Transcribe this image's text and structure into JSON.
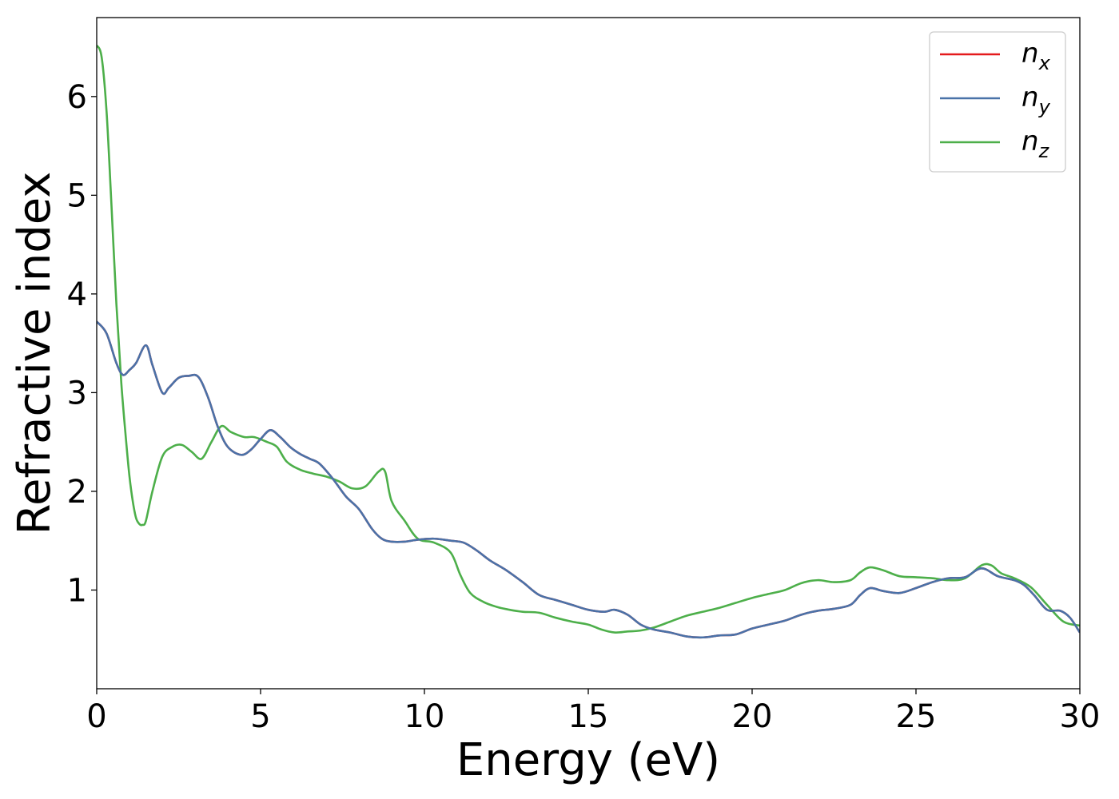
{
  "chart_data": {
    "type": "line",
    "xlabel": "Energy (eV)",
    "ylabel": "Refractive index",
    "xlim": [
      0,
      30
    ],
    "ylim": [
      0,
      6.8
    ],
    "xticks": [
      0,
      5,
      10,
      15,
      20,
      25,
      30
    ],
    "xtick_labels": [
      "0",
      "5",
      "10",
      "15",
      "20",
      "25",
      "30"
    ],
    "yticks": [
      1,
      2,
      3,
      4,
      5,
      6
    ],
    "ytick_labels": [
      "1",
      "2",
      "3",
      "4",
      "5",
      "6"
    ],
    "grid": false,
    "legend_position": "top-right",
    "series": [
      {
        "name": "n",
        "subscript": "x",
        "color": "#e41a1c",
        "key": "xy",
        "x": [
          0,
          0.3,
          0.6,
          0.8,
          1.0,
          1.2,
          1.5,
          1.7,
          2.0,
          2.2,
          2.5,
          2.8,
          3.1,
          3.4,
          3.7,
          4.0,
          4.4,
          4.7,
          5.0,
          5.3,
          5.6,
          5.9,
          6.2,
          6.5,
          6.8,
          7.2,
          7.6,
          8.0,
          8.4,
          8.7,
          9.0,
          9.4,
          9.8,
          10.3,
          10.8,
          11.2,
          11.6,
          12.0,
          12.5,
          13.0,
          13.5,
          14.0,
          14.5,
          15.0,
          15.5,
          15.8,
          16.2,
          16.6,
          17.0,
          17.5,
          18.0,
          18.5,
          19.0,
          19.5,
          20.0,
          20.5,
          21.0,
          21.5,
          22.0,
          22.5,
          23.0,
          23.3,
          23.6,
          24.0,
          24.5,
          25.0,
          25.5,
          26.0,
          26.5,
          27.0,
          27.5,
          28.0,
          28.3,
          28.6,
          29.0,
          29.4,
          29.7,
          30.0
        ],
        "y": [
          3.72,
          3.6,
          3.3,
          3.18,
          3.23,
          3.3,
          3.48,
          3.28,
          3.0,
          3.05,
          3.15,
          3.17,
          3.16,
          2.95,
          2.65,
          2.45,
          2.37,
          2.42,
          2.53,
          2.62,
          2.55,
          2.45,
          2.38,
          2.33,
          2.28,
          2.13,
          1.95,
          1.82,
          1.62,
          1.52,
          1.49,
          1.49,
          1.51,
          1.52,
          1.5,
          1.48,
          1.4,
          1.3,
          1.2,
          1.08,
          0.95,
          0.9,
          0.85,
          0.8,
          0.78,
          0.8,
          0.75,
          0.65,
          0.6,
          0.57,
          0.53,
          0.52,
          0.54,
          0.55,
          0.61,
          0.65,
          0.69,
          0.75,
          0.79,
          0.81,
          0.85,
          0.95,
          1.02,
          0.99,
          0.97,
          1.02,
          1.08,
          1.12,
          1.13,
          1.22,
          1.14,
          1.1,
          1.05,
          0.95,
          0.8,
          0.79,
          0.72,
          0.57
        ]
      },
      {
        "name": "n",
        "subscript": "y",
        "color": "#4a72a8",
        "key": "xy",
        "x": [
          0,
          0.3,
          0.6,
          0.8,
          1.0,
          1.2,
          1.5,
          1.7,
          2.0,
          2.2,
          2.5,
          2.8,
          3.1,
          3.4,
          3.7,
          4.0,
          4.4,
          4.7,
          5.0,
          5.3,
          5.6,
          5.9,
          6.2,
          6.5,
          6.8,
          7.2,
          7.6,
          8.0,
          8.4,
          8.7,
          9.0,
          9.4,
          9.8,
          10.3,
          10.8,
          11.2,
          11.6,
          12.0,
          12.5,
          13.0,
          13.5,
          14.0,
          14.5,
          15.0,
          15.5,
          15.8,
          16.2,
          16.6,
          17.0,
          17.5,
          18.0,
          18.5,
          19.0,
          19.5,
          20.0,
          20.5,
          21.0,
          21.5,
          22.0,
          22.5,
          23.0,
          23.3,
          23.6,
          24.0,
          24.5,
          25.0,
          25.5,
          26.0,
          26.5,
          27.0,
          27.5,
          28.0,
          28.3,
          28.6,
          29.0,
          29.4,
          29.7,
          30.0
        ],
        "y": [
          3.72,
          3.6,
          3.3,
          3.18,
          3.23,
          3.3,
          3.48,
          3.28,
          3.0,
          3.05,
          3.15,
          3.17,
          3.16,
          2.95,
          2.65,
          2.45,
          2.37,
          2.42,
          2.53,
          2.62,
          2.55,
          2.45,
          2.38,
          2.33,
          2.28,
          2.13,
          1.95,
          1.82,
          1.62,
          1.52,
          1.49,
          1.49,
          1.51,
          1.52,
          1.5,
          1.48,
          1.4,
          1.3,
          1.2,
          1.08,
          0.95,
          0.9,
          0.85,
          0.8,
          0.78,
          0.8,
          0.75,
          0.65,
          0.6,
          0.57,
          0.53,
          0.52,
          0.54,
          0.55,
          0.61,
          0.65,
          0.69,
          0.75,
          0.79,
          0.81,
          0.85,
          0.95,
          1.02,
          0.99,
          0.97,
          1.02,
          1.08,
          1.12,
          1.13,
          1.22,
          1.14,
          1.1,
          1.05,
          0.95,
          0.8,
          0.79,
          0.72,
          0.57
        ]
      },
      {
        "name": "n",
        "subscript": "z",
        "color": "#4daf4a",
        "key": "z",
        "x": [
          0,
          0.15,
          0.3,
          0.45,
          0.6,
          0.75,
          0.9,
          1.0,
          1.1,
          1.2,
          1.3,
          1.4,
          1.5,
          1.7,
          2.0,
          2.3,
          2.6,
          2.9,
          3.2,
          3.5,
          3.8,
          4.1,
          4.5,
          4.8,
          5.2,
          5.5,
          5.8,
          6.2,
          6.6,
          7.0,
          7.4,
          7.8,
          8.2,
          8.6,
          8.8,
          9.0,
          9.4,
          9.8,
          10.3,
          10.8,
          11.1,
          11.4,
          11.8,
          12.2,
          12.6,
          13.0,
          13.5,
          14.0,
          14.5,
          15.0,
          15.4,
          15.8,
          16.2,
          16.6,
          17.0,
          17.5,
          18.0,
          18.5,
          19.0,
          19.5,
          20.0,
          20.5,
          21.0,
          21.5,
          22.0,
          22.5,
          23.0,
          23.3,
          23.6,
          24.0,
          24.5,
          25.0,
          25.5,
          26.0,
          26.5,
          27.0,
          27.3,
          27.6,
          28.0,
          28.5,
          29.0,
          29.5,
          30.0
        ],
        "y": [
          6.52,
          6.4,
          5.85,
          4.9,
          3.9,
          3.1,
          2.5,
          2.15,
          1.9,
          1.73,
          1.67,
          1.66,
          1.7,
          2.0,
          2.35,
          2.45,
          2.47,
          2.4,
          2.33,
          2.5,
          2.66,
          2.6,
          2.55,
          2.55,
          2.5,
          2.45,
          2.3,
          2.22,
          2.18,
          2.15,
          2.1,
          2.03,
          2.05,
          2.2,
          2.2,
          1.9,
          1.7,
          1.52,
          1.48,
          1.38,
          1.15,
          0.97,
          0.88,
          0.83,
          0.8,
          0.78,
          0.77,
          0.72,
          0.68,
          0.65,
          0.6,
          0.57,
          0.58,
          0.59,
          0.62,
          0.68,
          0.74,
          0.78,
          0.82,
          0.87,
          0.92,
          0.96,
          1.0,
          1.07,
          1.1,
          1.08,
          1.1,
          1.18,
          1.23,
          1.2,
          1.14,
          1.13,
          1.12,
          1.1,
          1.12,
          1.25,
          1.25,
          1.17,
          1.12,
          1.03,
          0.85,
          0.68,
          0.64
        ]
      }
    ]
  }
}
